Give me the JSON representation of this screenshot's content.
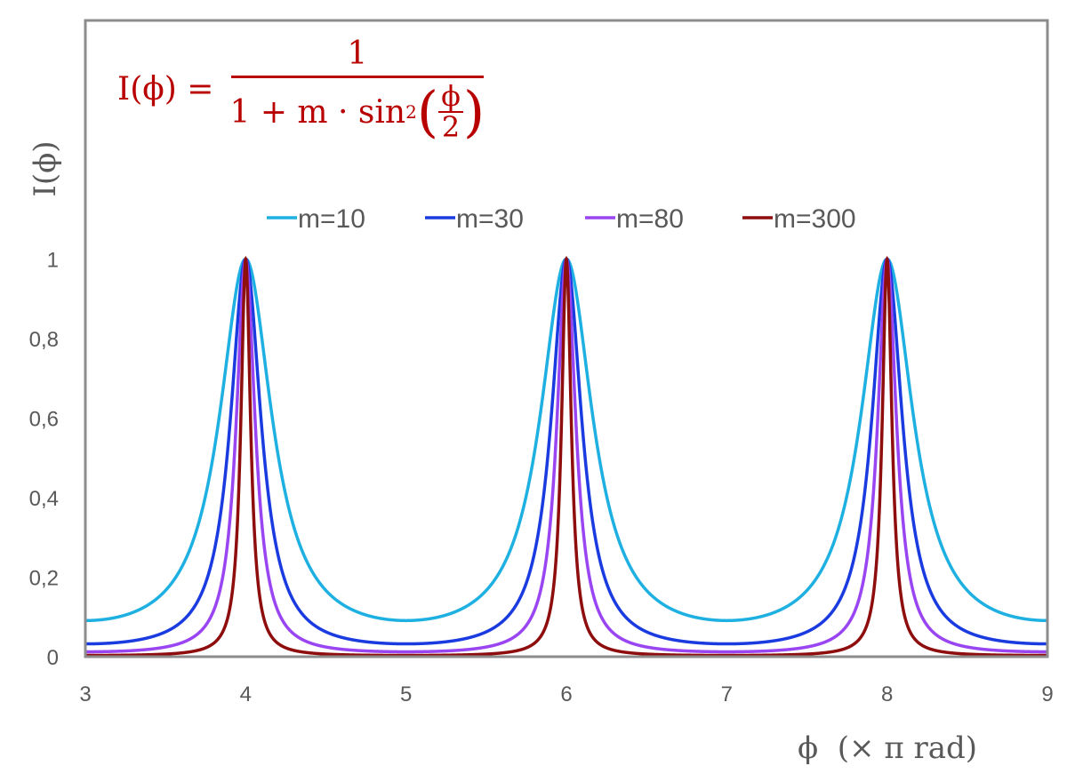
{
  "chart_data": {
    "type": "line",
    "title": "I(ϕ) = 1 / (1 + m · sin²(ϕ/2))",
    "formula": {
      "lhs": "I(ϕ) =",
      "numerator": "1",
      "denominator_prefix": "1 + m · sin",
      "exponent": "2",
      "inner_num": "ϕ",
      "inner_den": "2"
    },
    "xlabel": "ϕ  (× π rad)",
    "ylabel": "I(ϕ)",
    "xlim": [
      3,
      9
    ],
    "ylim": [
      0,
      1.6
    ],
    "x_ticks": [
      "3",
      "4",
      "5",
      "6",
      "7",
      "8",
      "9"
    ],
    "x_tick_values": [
      3,
      4,
      5,
      6,
      7,
      8,
      9
    ],
    "y_ticks": [
      "0",
      "0,2",
      "0,4",
      "0,6",
      "0,8",
      "1"
    ],
    "y_tick_values": [
      0,
      0.2,
      0.4,
      0.6,
      0.8,
      1
    ],
    "grid": false,
    "legend_position": "top",
    "series": [
      {
        "name": "m=10",
        "m": 10,
        "color": "#1fb0e2"
      },
      {
        "name": "m=30",
        "m": 30,
        "color": "#1a3be0"
      },
      {
        "name": "m=80",
        "m": 80,
        "color": "#9a45f2"
      },
      {
        "name": "m=300",
        "m": 300,
        "color": "#8e0d0d"
      }
    ],
    "frame_color": "#8c8c8c",
    "formula_color": "#b80000"
  }
}
